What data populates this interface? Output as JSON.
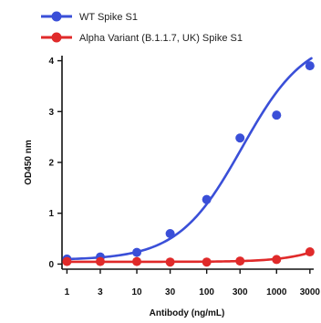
{
  "chart_data": {
    "type": "scatter",
    "xlabel": "Antibody (ng/mL)",
    "ylabel": "OD450 nm",
    "x_scale": "log",
    "x_ticks": [
      1,
      3,
      10,
      30,
      100,
      300,
      1000,
      3000
    ],
    "x_tick_labels": [
      "1",
      "3",
      "10",
      "30",
      "100",
      "300",
      "1000",
      "3000"
    ],
    "y_ticks": [
      0,
      1,
      2,
      3,
      4
    ],
    "y_tick_labels": [
      "0",
      "1",
      "2",
      "3",
      "4"
    ],
    "ylim": [
      -0.1,
      4.1
    ],
    "xlim": [
      0.85,
      3400
    ],
    "grid": false,
    "legend_position": "top",
    "series": [
      {
        "name": "WT Spike S1",
        "color": "#3a4fd8",
        "x": [
          1,
          3,
          10,
          30,
          100,
          300,
          1000,
          3000
        ],
        "y": [
          0.1,
          0.14,
          0.23,
          0.6,
          1.27,
          2.48,
          2.93,
          3.9
        ],
        "fit": "sigmoid"
      },
      {
        "name": "Alpha Variant (B.1.1.7, UK) Spike S1",
        "color": "#e02a2a",
        "x": [
          1,
          3,
          10,
          30,
          100,
          300,
          1000,
          3000
        ],
        "y": [
          0.05,
          0.05,
          0.05,
          0.04,
          0.04,
          0.06,
          0.09,
          0.24
        ],
        "fit": "sigmoid"
      }
    ]
  }
}
